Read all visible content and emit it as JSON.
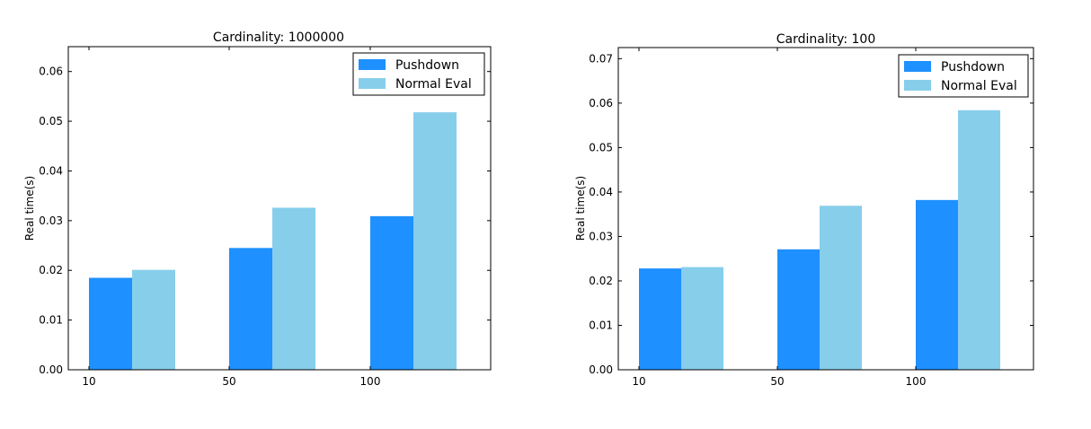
{
  "colors": {
    "pushdown": "#1e90ff",
    "normal_eval": "#87ceeb"
  },
  "chart_data": [
    {
      "type": "bar",
      "title": "Cardinality: 1000000",
      "ylabel": "Real time(s)",
      "xlabel": "",
      "categories": [
        "10",
        "50",
        "100"
      ],
      "ylim": [
        0,
        0.065
      ],
      "yticks": [
        "0.00",
        "0.01",
        "0.02",
        "0.03",
        "0.04",
        "0.05",
        "0.06"
      ],
      "legend_position": "top-right",
      "series": [
        {
          "name": "Pushdown",
          "values": [
            0.0185,
            0.0245,
            0.0309
          ]
        },
        {
          "name": "Normal Eval",
          "values": [
            0.0201,
            0.0326,
            0.0518
          ]
        }
      ]
    },
    {
      "type": "bar",
      "title": "Cardinality: 100",
      "ylabel": "Real time(s)",
      "xlabel": "",
      "categories": [
        "10",
        "50",
        "100"
      ],
      "ylim": [
        0,
        0.0725
      ],
      "yticks": [
        "0.00",
        "0.01",
        "0.02",
        "0.03",
        "0.04",
        "0.05",
        "0.06",
        "0.07"
      ],
      "legend_position": "top-right",
      "series": [
        {
          "name": "Pushdown",
          "values": [
            0.0228,
            0.0271,
            0.0382
          ]
        },
        {
          "name": "Normal Eval",
          "values": [
            0.0231,
            0.0369,
            0.0584
          ]
        }
      ]
    }
  ]
}
